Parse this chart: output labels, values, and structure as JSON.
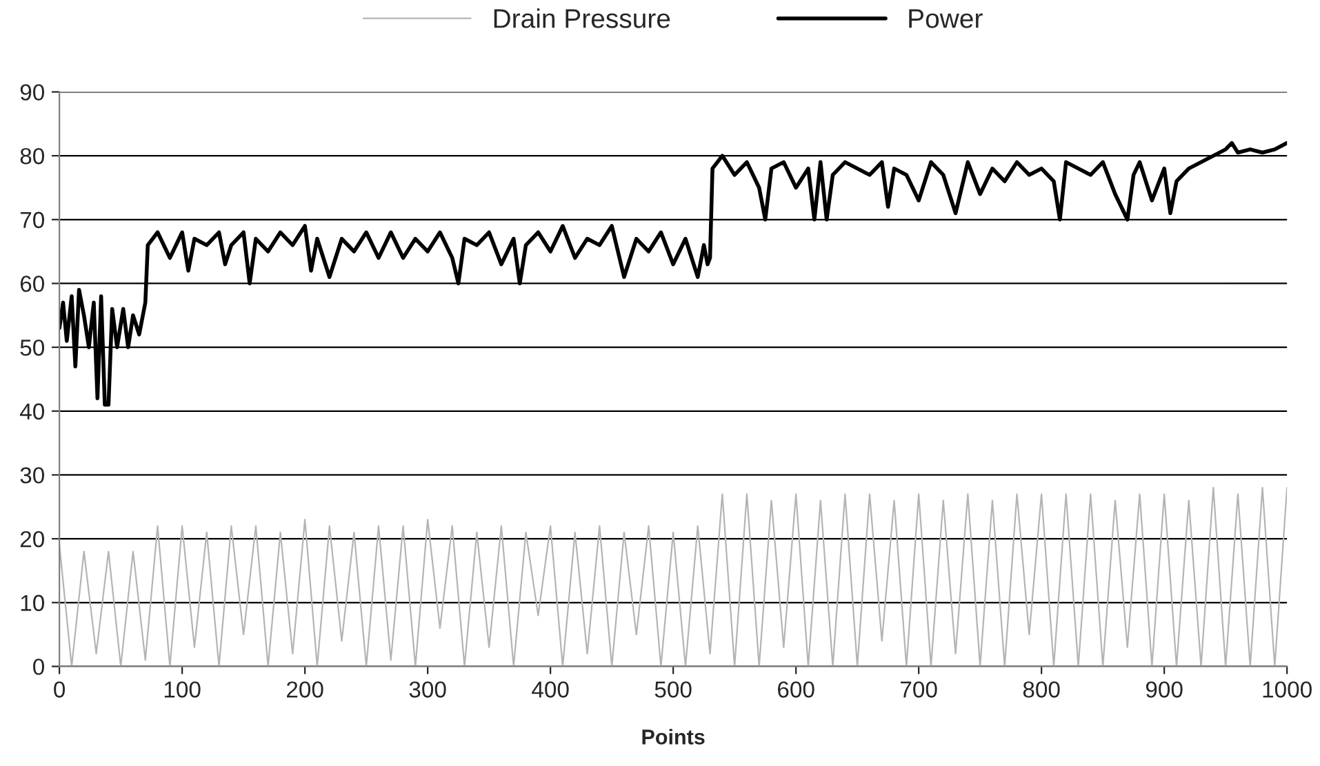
{
  "chart_data": {
    "type": "line",
    "xlabel": "Points",
    "xlim": [
      0,
      1000
    ],
    "xticks": [
      0,
      100,
      200,
      300,
      400,
      500,
      600,
      700,
      800,
      900,
      1000
    ],
    "ylim": [
      0,
      90
    ],
    "yticks": [
      0,
      10,
      20,
      30,
      40,
      50,
      60,
      70,
      80,
      90
    ],
    "grid": "y",
    "legend": "top",
    "marker": "none",
    "line_style": "solid",
    "series": [
      {
        "name": "Drain Pressure",
        "color": "#b4b4b4",
        "x": [
          0,
          10,
          20,
          30,
          40,
          50,
          60,
          70,
          80,
          90,
          100,
          110,
          120,
          130,
          140,
          150,
          160,
          170,
          180,
          190,
          200,
          210,
          220,
          230,
          240,
          250,
          260,
          270,
          280,
          290,
          300,
          310,
          320,
          330,
          340,
          350,
          360,
          370,
          380,
          390,
          400,
          410,
          420,
          430,
          440,
          450,
          460,
          470,
          480,
          490,
          500,
          510,
          520,
          530,
          540,
          550,
          560,
          570,
          580,
          590,
          600,
          610,
          620,
          630,
          640,
          650,
          660,
          670,
          680,
          690,
          700,
          710,
          720,
          730,
          740,
          750,
          760,
          770,
          780,
          790,
          800,
          810,
          820,
          830,
          840,
          850,
          860,
          870,
          880,
          890,
          900,
          910,
          920,
          930,
          940,
          950,
          960,
          970,
          980,
          990,
          1000
        ],
        "values": [
          19,
          0,
          18,
          2,
          18,
          0,
          18,
          1,
          22,
          0,
          22,
          3,
          21,
          0,
          22,
          5,
          22,
          0,
          21,
          2,
          23,
          0,
          22,
          4,
          21,
          0,
          22,
          1,
          22,
          0,
          23,
          6,
          22,
          0,
          21,
          3,
          22,
          0,
          21,
          8,
          22,
          0,
          21,
          2,
          22,
          0,
          21,
          5,
          22,
          0,
          21,
          0,
          22,
          2,
          27,
          0,
          27,
          0,
          26,
          3,
          27,
          0,
          26,
          0,
          27,
          0,
          27,
          4,
          26,
          0,
          27,
          0,
          26,
          2,
          27,
          0,
          26,
          0,
          27,
          5,
          27,
          0,
          27,
          0,
          27,
          0,
          26,
          3,
          27,
          0,
          27,
          0,
          26,
          0,
          28,
          0,
          27,
          0,
          28,
          0,
          28
        ]
      },
      {
        "name": "Power",
        "color": "#000000",
        "x": [
          0,
          3,
          6,
          10,
          13,
          16,
          20,
          24,
          28,
          31,
          34,
          37,
          40,
          43,
          47,
          52,
          56,
          60,
          65,
          70,
          72,
          80,
          90,
          100,
          105,
          110,
          120,
          130,
          135,
          140,
          150,
          155,
          160,
          170,
          180,
          190,
          200,
          205,
          210,
          220,
          230,
          240,
          250,
          260,
          270,
          280,
          290,
          300,
          310,
          320,
          325,
          330,
          340,
          350,
          360,
          370,
          375,
          380,
          390,
          400,
          410,
          420,
          430,
          440,
          450,
          460,
          470,
          480,
          490,
          500,
          510,
          520,
          525,
          528,
          530,
          532,
          540,
          550,
          560,
          570,
          575,
          580,
          590,
          600,
          610,
          615,
          620,
          625,
          630,
          640,
          650,
          660,
          670,
          675,
          680,
          690,
          700,
          710,
          720,
          730,
          740,
          750,
          760,
          770,
          780,
          790,
          800,
          810,
          815,
          820,
          830,
          840,
          850,
          860,
          870,
          875,
          880,
          890,
          900,
          905,
          910,
          920,
          930,
          940,
          950,
          955,
          960,
          970,
          980,
          990,
          1000
        ],
        "values": [
          53,
          57,
          51,
          58,
          47,
          59,
          55,
          50,
          57,
          42,
          58,
          41,
          41,
          56,
          50,
          56,
          50,
          55,
          52,
          57,
          66,
          68,
          64,
          68,
          62,
          67,
          66,
          68,
          63,
          66,
          68,
          60,
          67,
          65,
          68,
          66,
          69,
          62,
          67,
          61,
          67,
          65,
          68,
          64,
          68,
          64,
          67,
          65,
          68,
          64,
          60,
          67,
          66,
          68,
          63,
          67,
          60,
          66,
          68,
          65,
          69,
          64,
          67,
          66,
          69,
          61,
          67,
          65,
          68,
          63,
          67,
          61,
          66,
          63,
          64,
          78,
          80,
          77,
          79,
          75,
          70,
          78,
          79,
          75,
          78,
          70,
          79,
          70,
          77,
          79,
          78,
          77,
          79,
          72,
          78,
          77,
          73,
          79,
          77,
          71,
          79,
          74,
          78,
          76,
          79,
          77,
          78,
          76,
          70,
          79,
          78,
          77,
          79,
          74,
          70,
          77,
          79,
          73,
          78,
          71,
          76,
          78,
          79,
          80,
          81,
          82,
          80.5,
          81,
          80.5,
          81,
          82
        ]
      }
    ]
  }
}
